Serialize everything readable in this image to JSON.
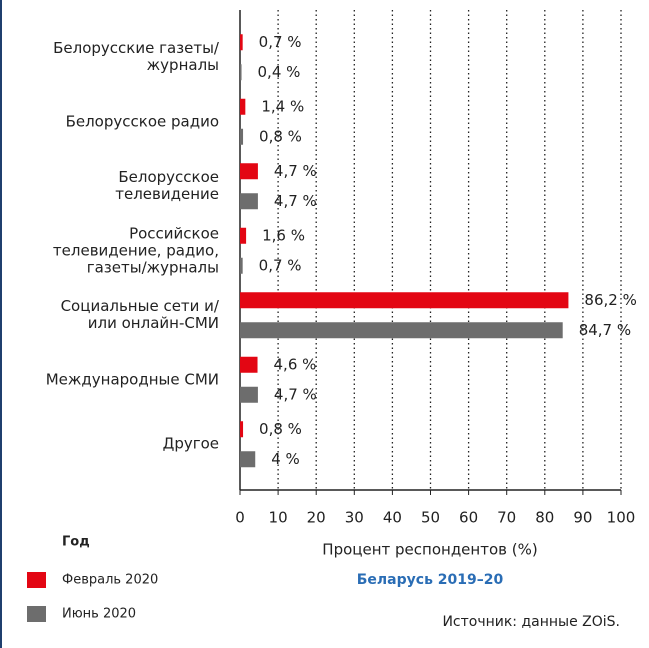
{
  "chart_data": {
    "type": "bar",
    "orientation": "horizontal",
    "title": "Беларусь 2019–20",
    "x_label": "Процент респондентов (%)",
    "legend_title": "Год",
    "source": "Источник: данные ZOiS.",
    "categories": [
      "Белорусские газеты/\nжурналы",
      "Белорусское радио",
      "Белорусское\nтелевидение",
      "Российское\nтелевидение, радио,\nгазеты/журналы",
      "Социальные сети и/\nили онлайн-СМИ",
      "Международные СМИ",
      "Другое"
    ],
    "series": [
      {
        "name": "Февраль 2020",
        "color": "#e30613",
        "values": [
          0.7,
          1.4,
          4.7,
          1.6,
          86.2,
          4.6,
          0.8
        ],
        "value_labels": [
          "0,7 %",
          "1,4 %",
          "4,7 %",
          "1,6 %",
          "86,2 %",
          "4,6 %",
          "0,8 %"
        ]
      },
      {
        "name": "Июнь 2020",
        "color": "#6d6d6d",
        "values": [
          0.4,
          0.8,
          4.7,
          0.7,
          84.7,
          4.7,
          4
        ],
        "value_labels": [
          "0,4 %",
          "0,8 %",
          "4,7 %",
          "0,7 %",
          "84,7 %",
          "4,7 %",
          "4 %"
        ]
      }
    ],
    "xlim": [
      0,
      100
    ],
    "xticks": [
      0,
      10,
      20,
      30,
      40,
      50,
      60,
      70,
      80,
      90,
      100
    ],
    "grid": true,
    "legend": "bottom-left"
  }
}
